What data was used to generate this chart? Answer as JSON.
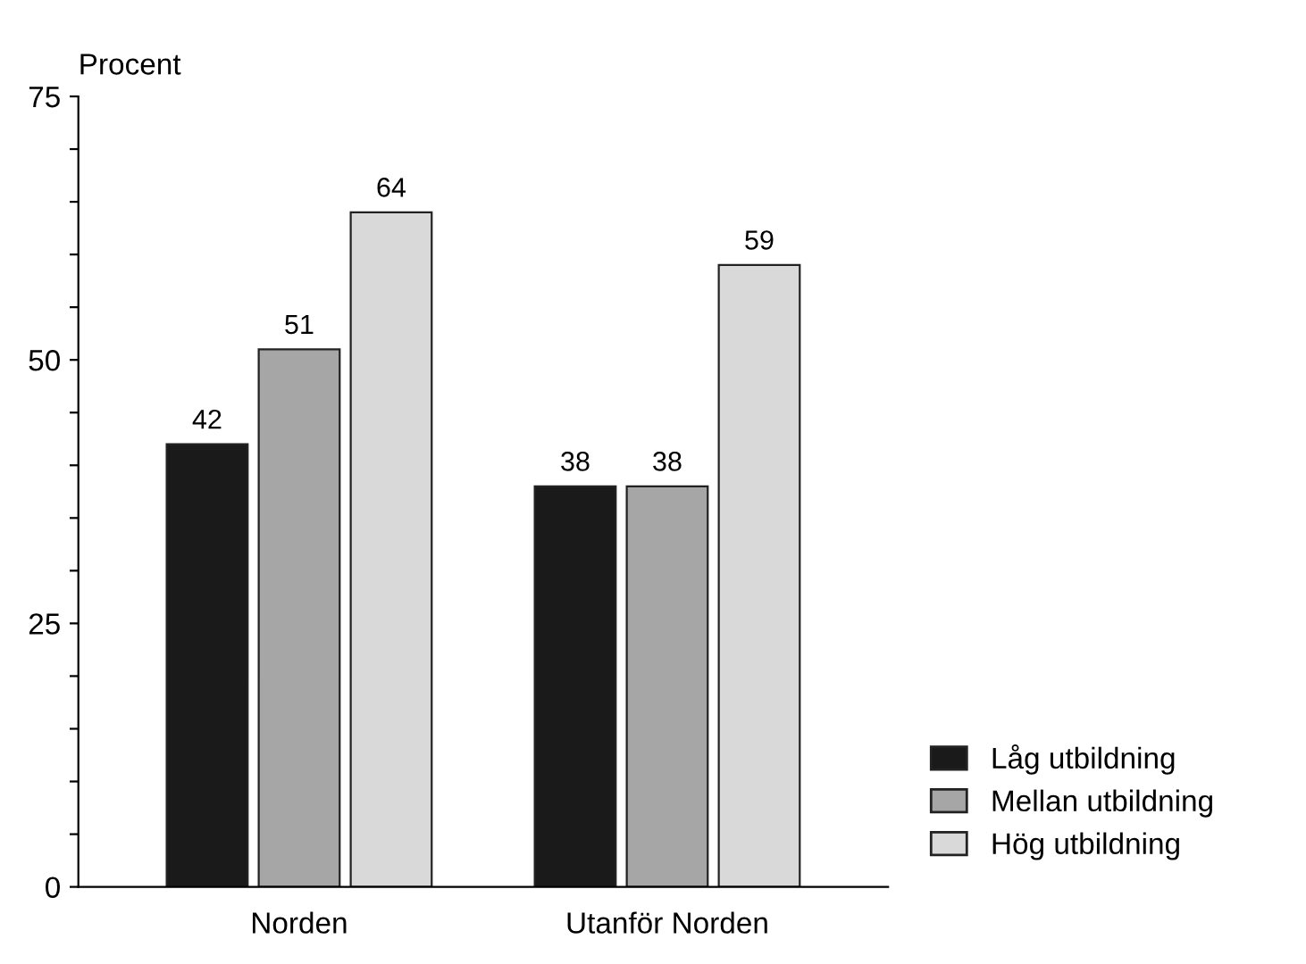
{
  "chart_data": {
    "type": "bar",
    "ylabel": "Procent",
    "categories": [
      "Norden",
      "Utanför Norden"
    ],
    "series": [
      {
        "name": "Låg utbildning",
        "color": "#1a1a1a",
        "values": [
          42,
          38
        ]
      },
      {
        "name": "Mellan utbildning",
        "color": "#a6a6a6",
        "values": [
          51,
          38
        ]
      },
      {
        "name": "Hög utbildning",
        "color": "#d9d9d9",
        "values": [
          64,
          59
        ]
      }
    ],
    "ylim": [
      0,
      75
    ],
    "yticks": [
      0,
      {
        "value": 5,
        "label": null
      },
      {
        "value": 10,
        "label": null
      },
      {
        "value": 15,
        "label": null
      },
      {
        "value": 20,
        "label": null
      },
      25,
      {
        "value": 30,
        "label": null
      },
      {
        "value": 35,
        "label": null
      },
      {
        "value": 40,
        "label": null
      },
      {
        "value": 45,
        "label": null
      },
      50,
      {
        "value": 55,
        "label": null
      },
      {
        "value": 60,
        "label": null
      },
      {
        "value": 65,
        "label": null
      },
      {
        "value": 70,
        "label": null
      },
      75
    ],
    "data_labels": true,
    "grid": false,
    "legend": "bottom right"
  }
}
